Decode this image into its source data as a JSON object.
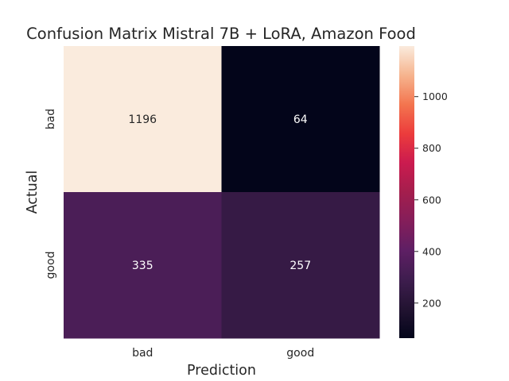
{
  "chart_data": {
    "type": "heatmap",
    "title": "Confusion Matrix Mistral 7B + LoRA, Amazon Food",
    "xlabel": "Prediction",
    "ylabel": "Actual",
    "x_categories": [
      "bad",
      "good"
    ],
    "y_categories": [
      "bad",
      "good"
    ],
    "values": [
      [
        1196,
        64
      ],
      [
        335,
        257
      ]
    ],
    "colorbar": {
      "colormap": "rocket",
      "range": [
        64,
        1196
      ],
      "ticks": [
        200,
        400,
        600,
        800,
        1000
      ]
    },
    "grid": false
  }
}
